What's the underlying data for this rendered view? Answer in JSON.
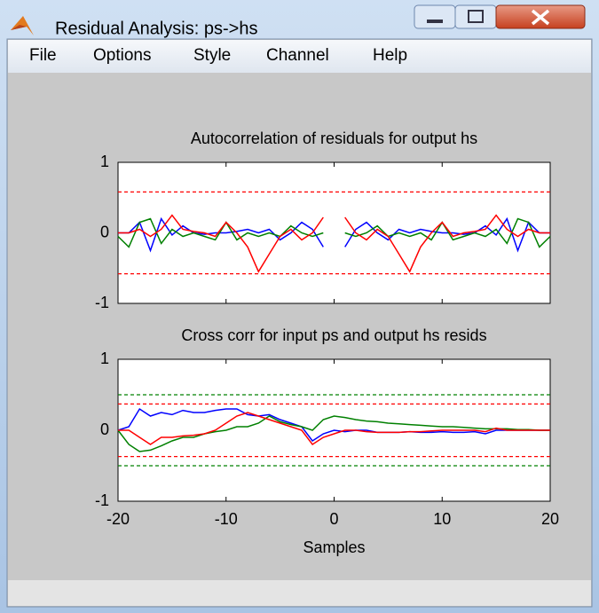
{
  "window": {
    "title": "Residual Analysis: ps->hs",
    "menu": [
      "File",
      "Options",
      "Style",
      "Channel",
      "Help"
    ]
  },
  "chart_data": [
    {
      "type": "line",
      "title": "Autocorrelation of residuals for output hs",
      "x": [
        -20,
        -19,
        -18,
        -17,
        -16,
        -15,
        -14,
        -13,
        -12,
        -11,
        -10,
        -9,
        -8,
        -7,
        -6,
        -5,
        -4,
        -3,
        -2,
        -1,
        0,
        1,
        2,
        3,
        4,
        5,
        6,
        7,
        8,
        9,
        10,
        11,
        12,
        13,
        14,
        15,
        16,
        17,
        18,
        19,
        20
      ],
      "xlim": [
        -20,
        20
      ],
      "xticks": [
        -20,
        -10,
        0,
        10,
        20
      ],
      "show_xtick_labels": false,
      "ylim": [
        -1,
        1
      ],
      "yticks": [
        -1,
        0,
        1
      ],
      "series": [
        {
          "color": "#0000ff",
          "values": [
            0.0,
            0.0,
            0.15,
            -0.25,
            0.2,
            -0.03,
            0.1,
            0.0,
            -0.02,
            0.0,
            0.0,
            0.02,
            0.05,
            0.0,
            0.05,
            -0.1,
            0.0,
            0.15,
            0.05,
            -0.2,
            null,
            -0.2,
            0.05,
            0.15,
            0.0,
            -0.1,
            0.05,
            0.0,
            0.05,
            0.02,
            0.0,
            0.0,
            -0.02,
            0.0,
            0.1,
            -0.03,
            0.2,
            -0.25,
            0.15,
            0.0,
            0.0
          ]
        },
        {
          "color": "#008000",
          "values": [
            -0.05,
            -0.2,
            0.15,
            0.2,
            -0.15,
            0.05,
            -0.05,
            0.0,
            -0.05,
            -0.1,
            0.15,
            -0.1,
            0.0,
            -0.05,
            0.0,
            -0.05,
            0.1,
            0.0,
            -0.05,
            0.0,
            null,
            0.0,
            -0.05,
            0.0,
            0.1,
            -0.05,
            0.0,
            -0.05,
            0.0,
            -0.1,
            0.15,
            -0.1,
            -0.05,
            0.0,
            -0.05,
            0.05,
            -0.15,
            0.2,
            0.15,
            -0.2,
            -0.05
          ]
        },
        {
          "color": "#ff0000",
          "values": [
            0.0,
            0.0,
            0.05,
            -0.05,
            0.05,
            0.25,
            0.05,
            0.02,
            0.0,
            -0.05,
            0.15,
            0.0,
            -0.2,
            -0.55,
            -0.3,
            -0.05,
            0.05,
            -0.1,
            0.0,
            0.22,
            null,
            0.22,
            0.0,
            -0.1,
            0.05,
            -0.05,
            -0.3,
            -0.55,
            -0.2,
            0.0,
            0.15,
            -0.05,
            0.0,
            0.02,
            0.05,
            0.25,
            0.05,
            -0.05,
            0.05,
            0.0,
            0.0
          ]
        }
      ],
      "hlines": [
        {
          "value": 0.58,
          "color": "#ff0000"
        },
        {
          "value": -0.58,
          "color": "#ff0000"
        }
      ]
    },
    {
      "type": "line",
      "title": "Cross corr for input ps and output hs resids",
      "xlabel": "Samples",
      "x": [
        -20,
        -19,
        -18,
        -17,
        -16,
        -15,
        -14,
        -13,
        -12,
        -11,
        -10,
        -9,
        -8,
        -7,
        -6,
        -5,
        -4,
        -3,
        -2,
        -1,
        0,
        1,
        2,
        3,
        4,
        5,
        6,
        7,
        8,
        9,
        10,
        11,
        12,
        13,
        14,
        15,
        16,
        17,
        18,
        19,
        20
      ],
      "xlim": [
        -20,
        20
      ],
      "xticks": [
        -20,
        -10,
        0,
        10,
        20
      ],
      "show_xtick_labels": true,
      "ylim": [
        -1,
        1
      ],
      "yticks": [
        -1,
        0,
        1
      ],
      "series": [
        {
          "color": "#0000ff",
          "values": [
            0.0,
            0.05,
            0.3,
            0.2,
            0.25,
            0.22,
            0.28,
            0.25,
            0.25,
            0.28,
            0.3,
            0.3,
            0.22,
            0.2,
            0.22,
            0.15,
            0.1,
            0.05,
            -0.15,
            -0.05,
            0.0,
            -0.02,
            0.0,
            0.0,
            -0.03,
            -0.03,
            -0.03,
            -0.02,
            -0.03,
            -0.03,
            -0.02,
            -0.03,
            -0.03,
            -0.02,
            -0.05,
            0.0,
            0.0,
            0.0,
            0.0,
            0.0,
            0.0
          ]
        },
        {
          "color": "#008000",
          "values": [
            0.0,
            -0.2,
            -0.3,
            -0.28,
            -0.22,
            -0.15,
            -0.1,
            -0.1,
            -0.05,
            -0.02,
            0.0,
            0.05,
            0.05,
            0.1,
            0.2,
            0.12,
            0.08,
            0.05,
            0.0,
            0.15,
            0.2,
            0.18,
            0.15,
            0.13,
            0.12,
            0.1,
            0.09,
            0.08,
            0.07,
            0.06,
            0.05,
            0.05,
            0.04,
            0.03,
            0.02,
            0.02,
            0.02,
            0.01,
            0.01,
            0.0,
            0.0
          ]
        },
        {
          "color": "#ff0000",
          "values": [
            0.0,
            0.0,
            -0.1,
            -0.2,
            -0.1,
            -0.1,
            -0.08,
            -0.07,
            -0.05,
            0.0,
            0.1,
            0.2,
            0.25,
            0.2,
            0.15,
            0.1,
            0.05,
            0.0,
            -0.2,
            -0.1,
            -0.05,
            0.0,
            0.0,
            -0.02,
            -0.03,
            -0.03,
            -0.03,
            -0.02,
            -0.02,
            -0.01,
            0.0,
            0.0,
            0.0,
            0.0,
            -0.02,
            0.03,
            0.0,
            0.0,
            0.0,
            0.0,
            0.0
          ]
        }
      ],
      "hlines": [
        {
          "value": 0.5,
          "color": "#008000"
        },
        {
          "value": 0.37,
          "color": "#ff0000"
        },
        {
          "value": -0.37,
          "color": "#ff0000"
        },
        {
          "value": -0.5,
          "color": "#008000"
        }
      ]
    }
  ]
}
